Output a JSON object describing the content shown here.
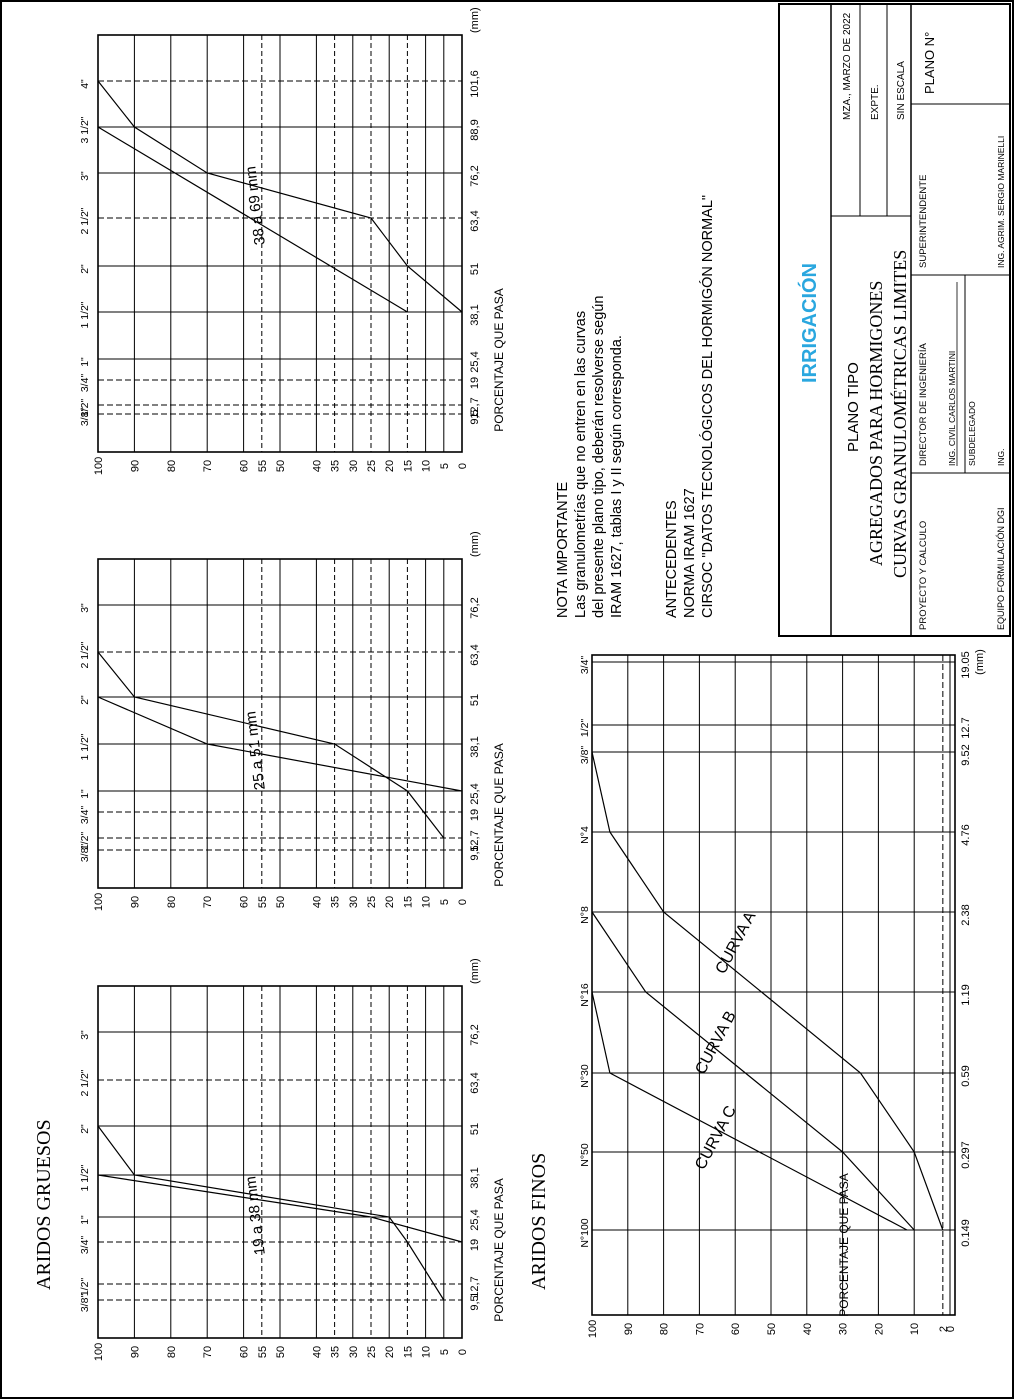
{
  "colors": {
    "ink": "#000000",
    "brand": "#2aa7df"
  },
  "ylabel": "PORCENTAJE QUE PASA",
  "coarse_section_title": "ARIDOS   GRUESOS",
  "fine_section_title": "ARIDOS   FINOS",
  "note": {
    "title": "NOTA IMPORTANTE",
    "lines": [
      "Las granulometrías que no entren en las curvas",
      "del presente plano tipo, deberán resolverse según",
      "IRAM 1627, tablas I y II según corresponda."
    ]
  },
  "antecedentes": {
    "title": "ANTECEDENTES",
    "lines": [
      "NORMA IRAM 1627",
      "CIRSOC \"DATOS TECNOLÓGICOS DEL HORMIGÓN NORMAL\""
    ]
  },
  "title_block": {
    "brand": "IRRIGACIÓN",
    "plano_tipo": "PLANO TIPO",
    "line1": "AGREGADOS  PARA  HORMIGONES",
    "line2": "CURVAS  GRANULOMÉTRICAS  LIMITES",
    "date": "MZA., MARZO DE 2022",
    "expte": "EXPTE.",
    "escala": "SIN ESCALA",
    "plano_no": "PLANO N°",
    "proyecto": "PROYECTO Y CALCULO",
    "equipo": "EQUIPO FORMULACIÓN DGI",
    "director": "DIRECTOR DE INGENIERÍA",
    "director_name": "ING. CIVIL CARLOS MARTINI",
    "subdelegado": "SUBDELEGADO",
    "ing": "ING.",
    "superintendente": "SUPERINTENDENTE",
    "super_name": "ING. AGRIM. SERGIO MARINELLI"
  },
  "chart_data": [
    {
      "type": "line",
      "subtitle": "19 a 38 mm",
      "y_ticks": [
        100,
        90,
        80,
        70,
        60,
        55,
        50,
        40,
        35,
        30,
        25,
        20,
        15,
        10,
        5,
        0
      ],
      "x_unit": "(mm)",
      "x_labels": [
        "9,5",
        "12,7",
        "19",
        "25,4",
        "38,1",
        "51",
        "63,4",
        "76,2"
      ],
      "x_inch": [
        "3/8\"",
        "1/2\"",
        "3/4\"",
        "1\"",
        "1 1/2\"",
        "2\"",
        "2 1/2\"",
        "3\""
      ],
      "series": [
        {
          "x": [
            "9,5",
            "19",
            "25,4",
            "38,1",
            "51"
          ],
          "y": [
            5,
            15,
            20,
            90,
            100
          ]
        },
        {
          "x": [
            "19",
            "25,4",
            "38,1"
          ],
          "y": [
            0,
            25,
            100
          ]
        }
      ],
      "ylim": [
        0,
        100
      ]
    },
    {
      "type": "line",
      "subtitle": "25 a 51 mm",
      "y_ticks": [
        100,
        90,
        80,
        70,
        60,
        55,
        50,
        40,
        35,
        30,
        25,
        20,
        15,
        10,
        5,
        0
      ],
      "x_unit": "(mm)",
      "x_labels": [
        "9,5",
        "12,7",
        "19",
        "25,4",
        "38,1",
        "51",
        "63,4",
        "76,2"
      ],
      "x_inch": [
        "3/8\"",
        "1/2\"",
        "3/4\"",
        "1\"",
        "1 1/2\"",
        "2\"",
        "2 1/2\"",
        "3\""
      ],
      "series": [
        {
          "x": [
            "12,7",
            "25,4",
            "38,1",
            "51",
            "63,4"
          ],
          "y": [
            5,
            15,
            35,
            90,
            100
          ]
        },
        {
          "x": [
            "25,4",
            "38,1",
            "51"
          ],
          "y": [
            0,
            70,
            100
          ]
        }
      ],
      "ylim": [
        0,
        100
      ]
    },
    {
      "type": "line",
      "subtitle": "38 a 69 mm",
      "y_ticks": [
        100,
        90,
        80,
        70,
        60,
        55,
        50,
        40,
        35,
        30,
        25,
        20,
        15,
        10,
        5,
        0
      ],
      "x_unit": "(mm)",
      "x_labels": [
        "9,5",
        "12,7",
        "19",
        "25,4",
        "38,1",
        "51",
        "63,4",
        "76,2",
        "88,9",
        "101,6"
      ],
      "x_inch": [
        "3/8\"",
        "1/2\"",
        "3/4\"",
        "1\"",
        "1 1/2\"",
        "2\"",
        "2 1/2\"",
        "3\"",
        "3 1/2\"",
        "4\""
      ],
      "series": [
        {
          "x": [
            "38,1",
            "51",
            "63,4",
            "76,2",
            "88,9",
            "101,6"
          ],
          "y": [
            0,
            15,
            25,
            70,
            90,
            100
          ]
        },
        {
          "x": [
            "38,1",
            "88,9"
          ],
          "y": [
            15,
            100
          ]
        }
      ],
      "ylim": [
        0,
        100
      ]
    },
    {
      "type": "line",
      "y_ticks": [
        100,
        90,
        80,
        70,
        60,
        50,
        40,
        30,
        20,
        10,
        2,
        0
      ],
      "x_unit": "(mm)",
      "x_labels": [
        "0.149",
        "0.297",
        "0.59",
        "1.19",
        "2.38",
        "4.76",
        "9.52",
        "12.7",
        "19.05"
      ],
      "x_sieves": [
        "N°100",
        "N°50",
        "N°30",
        "N°16",
        "N°8",
        "N°4",
        "3/8\"",
        "1/2\"",
        "3/4\""
      ],
      "series": [
        {
          "name": "CURVA A",
          "x": [
            "0.149",
            "0.297",
            "0.59",
            "2.38",
            "4.76",
            "9.52"
          ],
          "y": [
            2,
            10,
            25,
            80,
            95,
            100
          ]
        },
        {
          "name": "CURVA B",
          "x": [
            "0.149",
            "0.297",
            "1.19",
            "2.38"
          ],
          "y": [
            10,
            30,
            85,
            100
          ]
        },
        {
          "name": "CURVA C",
          "x": [
            "0.149",
            "0.59",
            "1.19"
          ],
          "y": [
            12,
            95,
            100
          ]
        }
      ],
      "ylim": [
        0,
        100
      ]
    }
  ]
}
